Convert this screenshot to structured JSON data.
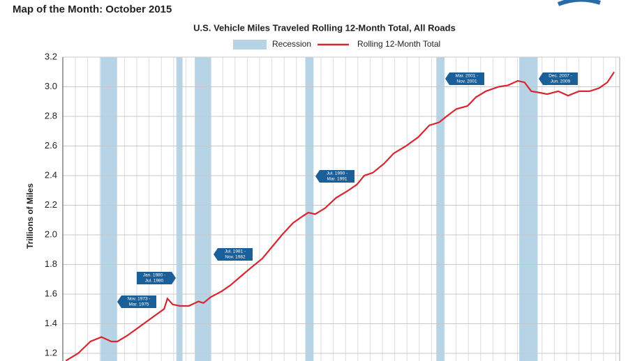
{
  "chart_data": {
    "type": "line",
    "header": "Map of the Month: October 2015",
    "title": "U.S. Vehicle Miles Traveled Rolling 12-Month Total, All Roads",
    "y_label": "Trillions of Miles",
    "legend": {
      "recession": "Recession"
    },
    "series": [
      {
        "name": "Rolling 12-Month Total",
        "color": "#d7262e",
        "x": [
          1971.0,
          1972.0,
          1972.5,
          1973.0,
          1973.9,
          1974.7,
          1975.2,
          1976.0,
          1977.0,
          1978.0,
          1979.0,
          1979.27,
          1979.7,
          1980.3,
          1981.0,
          1981.8,
          1982.2,
          1982.8,
          1983.7,
          1984.4,
          1985.25,
          1986.1,
          1987.0,
          1987.8,
          1988.6,
          1989.5,
          1990.35,
          1990.75,
          1991.3,
          1992.1,
          1993.0,
          1994.0,
          1994.7,
          1995.3,
          1996.0,
          1996.9,
          1997.7,
          1998.7,
          1999.7,
          2000.6,
          2001.4,
          2002.0,
          2002.8,
          2003.7,
          2004.4,
          2005.2,
          2006.25,
          2007.0,
          2007.8,
          2008.35,
          2008.9,
          2009.6,
          2010.2,
          2011.1,
          2011.9,
          2012.8,
          2013.65,
          2014.4,
          2015.1,
          2015.65
        ],
        "values": [
          1.15,
          1.2,
          1.24,
          1.28,
          1.31,
          1.28,
          1.28,
          1.32,
          1.38,
          1.44,
          1.5,
          1.57,
          1.53,
          1.52,
          1.52,
          1.55,
          1.54,
          1.58,
          1.62,
          1.66,
          1.72,
          1.78,
          1.84,
          1.92,
          2.0,
          2.08,
          2.13,
          2.15,
          2.14,
          2.18,
          2.25,
          2.3,
          2.34,
          2.4,
          2.42,
          2.48,
          2.55,
          2.6,
          2.66,
          2.74,
          2.76,
          2.8,
          2.85,
          2.87,
          2.93,
          2.97,
          3.0,
          3.01,
          3.04,
          3.03,
          2.97,
          2.96,
          2.95,
          2.97,
          2.94,
          2.97,
          2.97,
          2.99,
          3.03,
          3.1
        ]
      }
    ],
    "recessions": [
      {
        "start": 1973.83,
        "end": 1975.17,
        "label": [
          "Nov. 1973 -",
          "Mar. 1975"
        ]
      },
      {
        "start": 1980.0,
        "end": 1980.5,
        "label": [
          "Jan. 1980 -",
          "Jul. 1980"
        ]
      },
      {
        "start": 1981.5,
        "end": 1982.83,
        "label": [
          "Jul. 1981 -",
          "Nov. 1982"
        ]
      },
      {
        "start": 1990.5,
        "end": 1991.17,
        "label": [
          "Jul. 1990 -",
          "Mar. 1991"
        ]
      },
      {
        "start": 2001.17,
        "end": 2001.83,
        "label": [
          "Mar. 2001 -",
          "Nov. 2001"
        ]
      },
      {
        "start": 2007.92,
        "end": 2009.42,
        "label": [
          "Dec. 2007 -",
          "Jun. 2009"
        ]
      }
    ],
    "recession_color": "#b7d3e6",
    "xlim": [
      1970.75,
      2016.1
    ],
    "ylim": [
      1.15,
      3.2
    ],
    "yticks": [
      1.2,
      1.4,
      1.6,
      1.8,
      {
        "value": 2,
        "label": "2.0"
      },
      2.2,
      2.4,
      2.6,
      2.8,
      {
        "value": 3,
        "label": "3.0"
      },
      3.2
    ],
    "grid": true
  }
}
